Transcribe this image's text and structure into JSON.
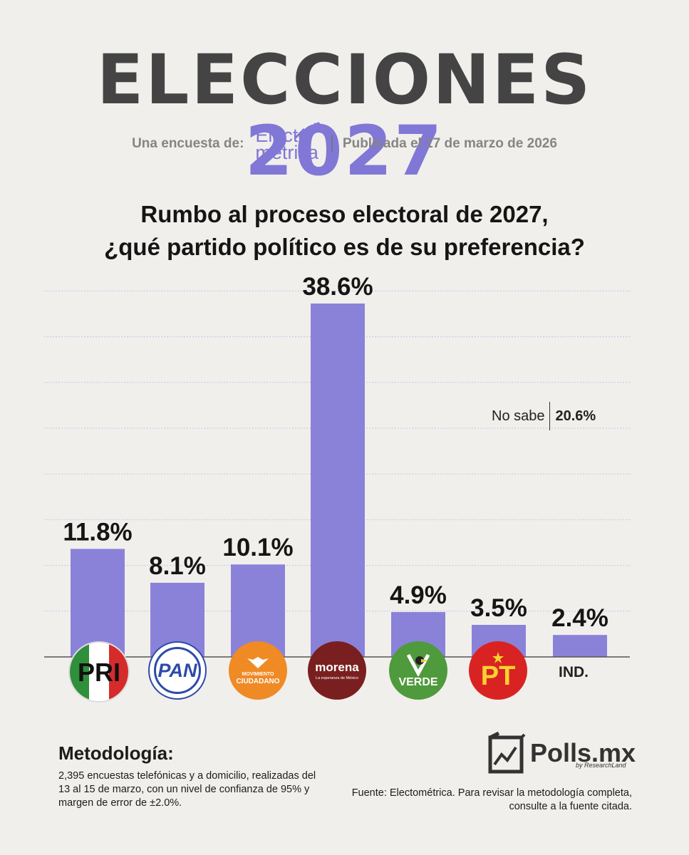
{
  "header": {
    "title_word": "ELECCIONES",
    "title_year": "2027",
    "byline_prefix": "Una encuesta de:",
    "pollster_logo_line1": "Electo",
    "pollster_logo_line2": "métrica",
    "published": "Publicada el 17 de marzo de 2026"
  },
  "question": {
    "line1": "Rumbo al proceso electoral de 2027,",
    "line2": "¿qué partido político es de su preferencia?"
  },
  "chart_data": {
    "type": "bar",
    "categories": [
      "PRI",
      "PAN",
      "MC",
      "Morena",
      "Verde",
      "PT",
      "IND."
    ],
    "values": [
      11.8,
      8.1,
      10.1,
      38.6,
      4.9,
      3.5,
      2.4
    ],
    "labels": [
      "11.8%",
      "8.1%",
      "10.1%",
      "38.6%",
      "4.9%",
      "3.5%",
      "2.4%"
    ],
    "ylim": [
      0,
      40
    ],
    "grid": true,
    "bar_color": "#8a82d9"
  },
  "no_sabe": {
    "label": "No sabe",
    "value": "20.6%"
  },
  "logos": {
    "pri": "PRI",
    "pan": "PAN",
    "mc_line1": "MOVIMIENTO",
    "mc_line2": "CIUDADANO",
    "morena_name": "morena",
    "morena_sub": "La esperanza de México",
    "verde": "VERDE",
    "pt": "PT",
    "ind": "IND."
  },
  "metodologia": {
    "heading": "Metodología:",
    "text": "2,395 encuestas telefónicas y a domicilio, realizadas del 13 al 15 de marzo, con un nivel de confianza de 95% y margen de error de ±2.0%."
  },
  "brand": {
    "name": "Polls.mx",
    "sub": "by ResearchLand"
  },
  "fuente": "Fuente: Electométrica. Para revisar la metodología completa, consulte a la fuente citada.",
  "colors": {
    "accent": "#8077d6",
    "title": "#444444",
    "background": "#f1efeb"
  }
}
